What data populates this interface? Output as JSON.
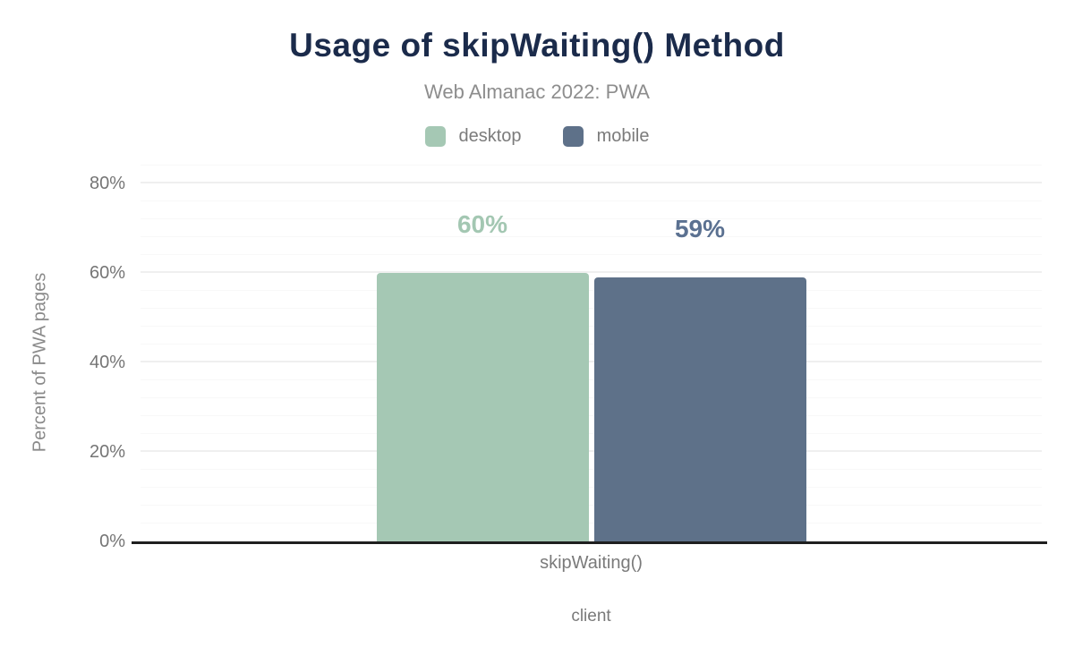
{
  "chart_data": {
    "type": "bar",
    "title": "Usage of skipWaiting() Method",
    "subtitle": "Web Almanac 2022: PWA",
    "categories": [
      "skipWaiting()"
    ],
    "series": [
      {
        "name": "desktop",
        "values": [
          60
        ],
        "label": "60%",
        "color": "#a5c8b4",
        "label_color": "#a3c7b2"
      },
      {
        "name": "mobile",
        "values": [
          59
        ],
        "label": "59%",
        "color": "#5e7189",
        "label_color": "#5b7191"
      }
    ],
    "xlabel": "client",
    "ylabel": "Percent of PWA pages",
    "ylim": [
      0,
      84
    ],
    "yticks": [
      {
        "value": 0,
        "label": "0%"
      },
      {
        "value": 20,
        "label": "20%"
      },
      {
        "value": 40,
        "label": "40%"
      },
      {
        "value": 60,
        "label": "60%"
      },
      {
        "value": 80,
        "label": "80%"
      }
    ],
    "grid": {
      "minor_step": 4,
      "major_step": 20,
      "minor_color": "#f8f8f8",
      "major_color": "#efefef"
    },
    "legend_position": "top"
  },
  "colors": {
    "background": "#ffffff",
    "title": "#1b2b4b",
    "subtitle": "#8d8d8d",
    "axis_text": "#757575",
    "axis_line": "#1f1f1f",
    "legend_text": "#7b7b7b"
  }
}
